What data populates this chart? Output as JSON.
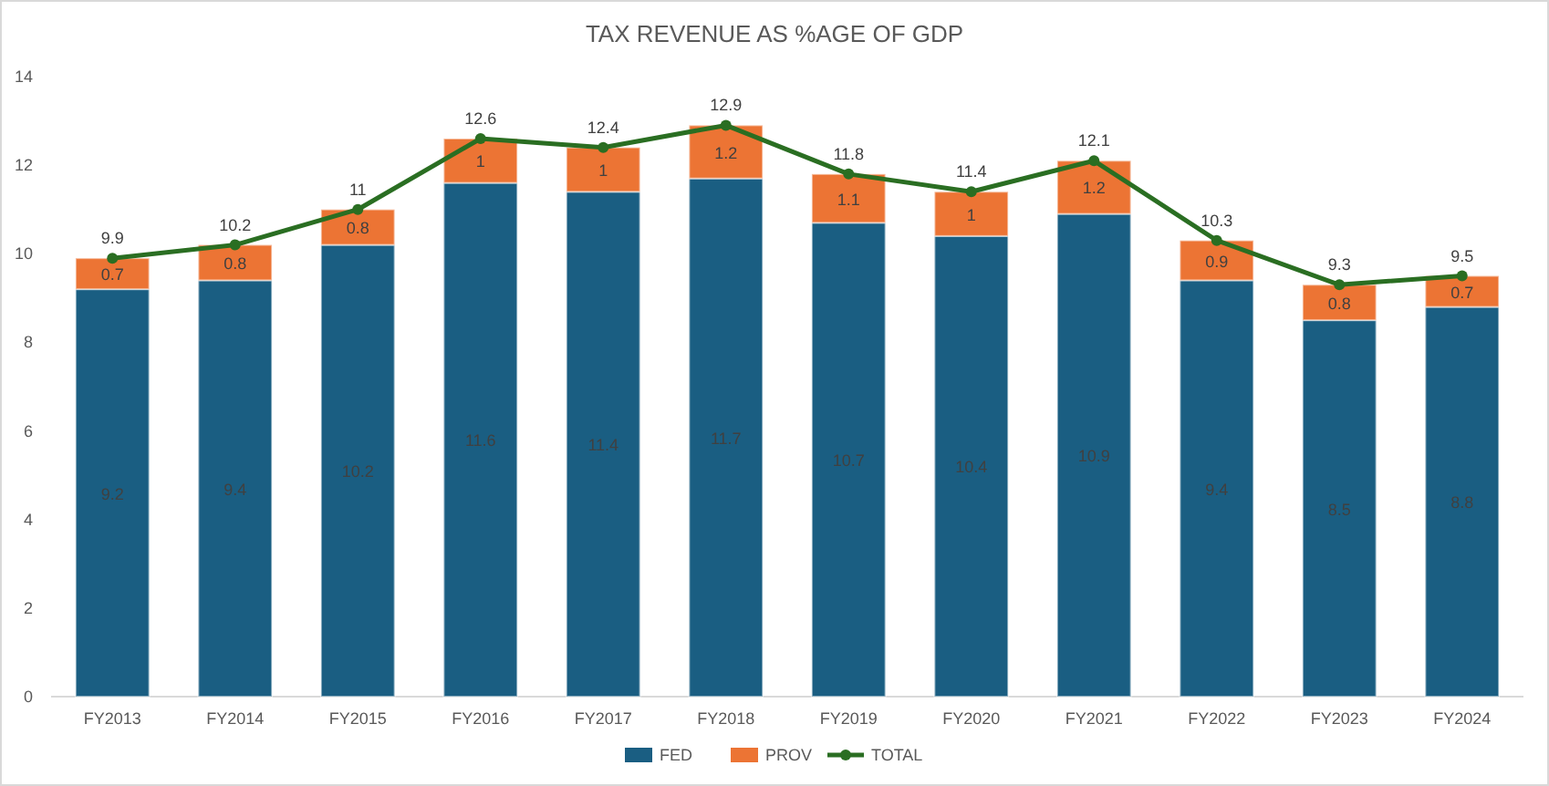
{
  "chart_data": {
    "type": "bar",
    "title": "TAX REVENUE AS %AGE OF GDP",
    "categories": [
      "FY2013",
      "FY2014",
      "FY2015",
      "FY2016",
      "FY2017",
      "FY2018",
      "FY2019",
      "FY2020",
      "FY2021",
      "FY2022",
      "FY2023",
      "FY2024"
    ],
    "stacked": true,
    "data_labels": true,
    "legend": "bottom",
    "marker": "circle",
    "ylim": [
      0,
      14
    ],
    "yticks": [
      0,
      2,
      4,
      6,
      8,
      10,
      12,
      14
    ],
    "series": [
      {
        "name": "FED",
        "color": "#1a5e82",
        "values": [
          9.2,
          9.4,
          10.2,
          11.6,
          11.4,
          11.7,
          10.7,
          10.4,
          10.9,
          9.4,
          8.5,
          8.8
        ]
      },
      {
        "name": "PROV",
        "color": "#ec7434",
        "values": [
          0.7,
          0.8,
          0.8,
          1,
          1,
          1.2,
          1.1,
          1,
          1.2,
          0.9,
          0.8,
          0.7
        ]
      },
      {
        "name": "TOTAL",
        "type": "line",
        "color": "#2a6e22",
        "values": [
          9.9,
          10.2,
          11,
          12.6,
          12.4,
          12.9,
          11.8,
          11.4,
          12.1,
          10.3,
          9.3,
          9.5
        ]
      }
    ]
  }
}
